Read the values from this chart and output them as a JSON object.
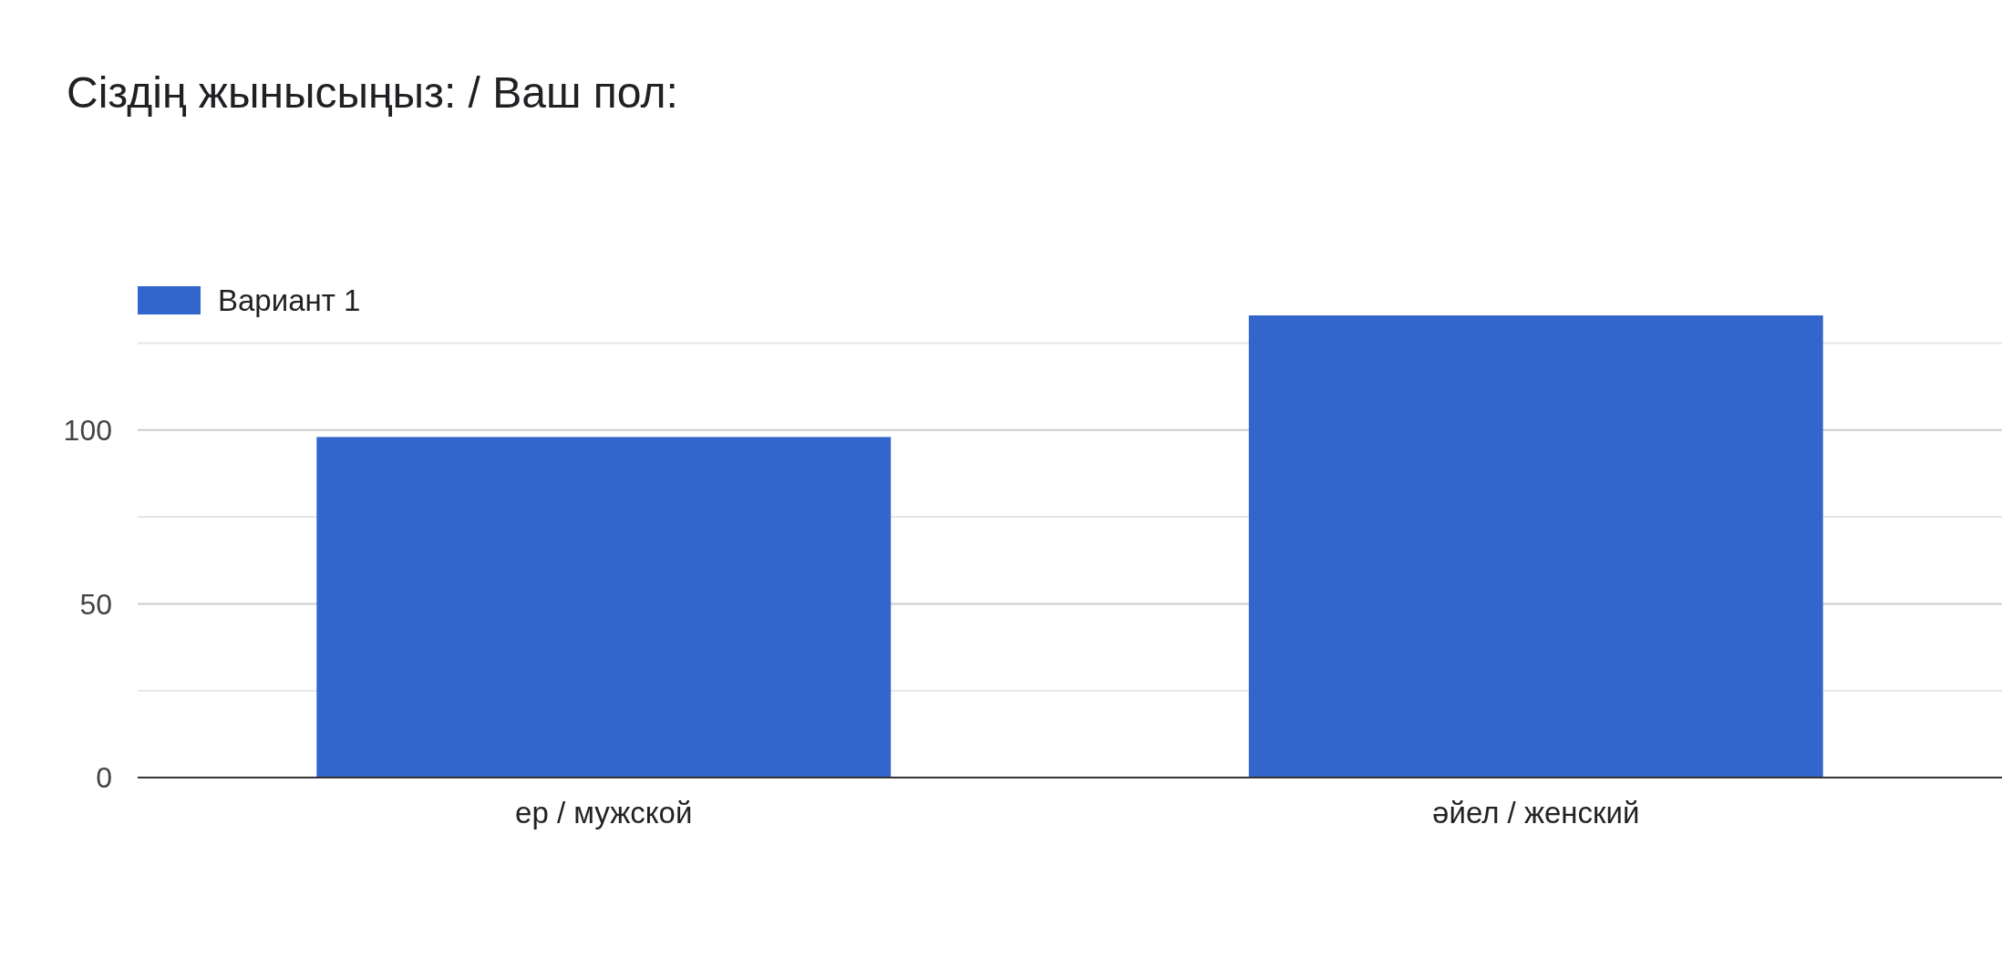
{
  "chart_data": {
    "type": "bar",
    "title": "Сіздің жынысыңыз: / Ваш пол:",
    "categories": [
      "ер / мужской",
      "әйел / женский"
    ],
    "series": [
      {
        "name": "Вариант 1",
        "color": "#3366cc",
        "values": [
          98,
          133
        ]
      }
    ],
    "yticks": [
      0,
      {
        "value": 25,
        "label": null
      },
      50,
      {
        "value": 75,
        "label": null
      },
      100,
      {
        "value": 125,
        "label": null
      }
    ],
    "ylim": [
      0,
      133
    ],
    "grid": "y",
    "legend": "top left"
  }
}
